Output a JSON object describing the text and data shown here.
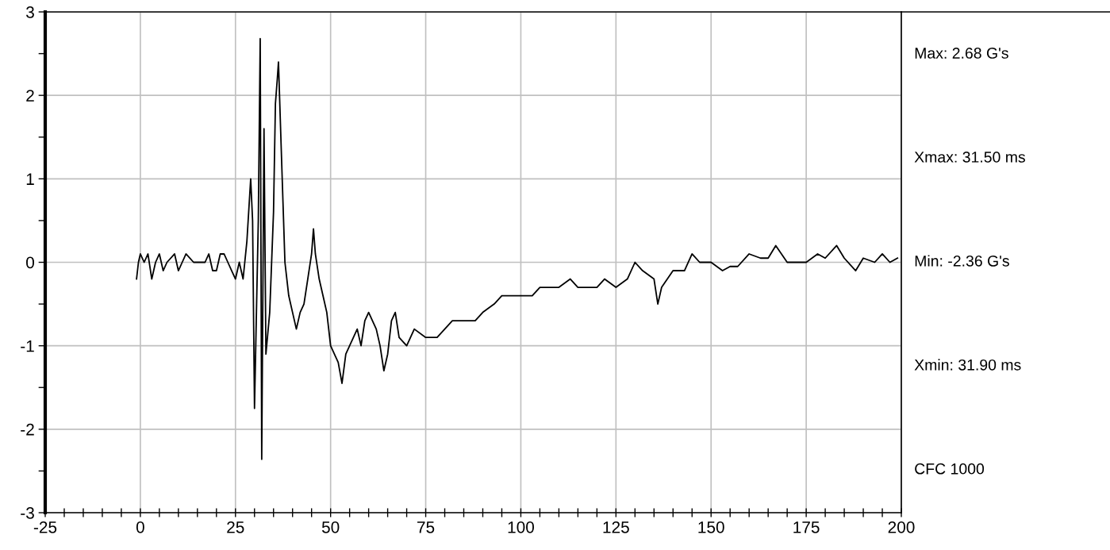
{
  "chart_data": {
    "type": "line",
    "x": [
      -1,
      -0.5,
      0,
      1,
      2,
      3,
      4,
      5,
      6,
      7,
      9,
      10,
      11,
      12,
      14,
      17,
      18,
      19,
      20,
      21,
      22,
      23,
      24,
      25,
      26,
      27,
      28,
      29,
      29.5,
      30,
      31,
      31.5,
      31.9,
      32.5,
      33,
      34,
      35,
      35.5,
      36,
      36.3,
      37,
      38,
      39,
      40,
      41,
      42,
      43,
      44,
      45,
      45.5,
      46,
      47,
      48,
      49,
      50,
      51,
      52,
      53,
      54,
      55,
      57,
      58,
      59,
      60,
      62,
      63,
      64,
      65,
      66,
      67,
      68,
      70,
      72,
      75,
      78,
      80,
      82,
      85,
      88,
      90,
      93,
      95,
      97,
      100,
      103,
      105,
      108,
      110,
      113,
      115,
      118,
      120,
      122,
      125,
      128,
      130,
      132,
      135,
      136,
      137,
      140,
      143,
      145,
      147,
      150,
      153,
      155,
      157,
      160,
      163,
      165,
      167,
      170,
      173,
      175,
      178,
      180,
      183,
      185,
      188,
      190,
      193,
      195,
      197,
      199
    ],
    "series": [
      {
        "color": "#000000",
        "values": [
          -0.2,
          0.0,
          0.1,
          0.0,
          0.1,
          -0.2,
          0.0,
          0.1,
          -0.1,
          0.0,
          0.1,
          -0.1,
          0.0,
          0.1,
          0.0,
          0.0,
          0.1,
          -0.1,
          -0.1,
          0.1,
          0.1,
          0.0,
          -0.1,
          -0.2,
          0.0,
          -0.2,
          0.25,
          1.0,
          0.5,
          -1.75,
          0.5,
          2.68,
          -2.36,
          1.6,
          -1.1,
          -0.6,
          0.6,
          1.9,
          2.2,
          2.4,
          1.4,
          0.0,
          -0.4,
          -0.6,
          -0.8,
          -0.6,
          -0.5,
          -0.2,
          0.1,
          0.4,
          0.1,
          -0.2,
          -0.4,
          -0.6,
          -1.0,
          -1.1,
          -1.2,
          -1.45,
          -1.1,
          -1.0,
          -0.8,
          -1.0,
          -0.7,
          -0.6,
          -0.8,
          -1.0,
          -1.3,
          -1.1,
          -0.7,
          -0.6,
          -0.9,
          -1.0,
          -0.8,
          -0.9,
          -0.9,
          -0.8,
          -0.7,
          -0.7,
          -0.7,
          -0.6,
          -0.5,
          -0.4,
          -0.4,
          -0.4,
          -0.4,
          -0.3,
          -0.3,
          -0.3,
          -0.2,
          -0.3,
          -0.3,
          -0.3,
          -0.2,
          -0.3,
          -0.2,
          0.0,
          -0.1,
          -0.2,
          -0.5,
          -0.3,
          -0.1,
          -0.1,
          0.1,
          0.0,
          0.0,
          -0.1,
          -0.05,
          -0.05,
          0.1,
          0.05,
          0.05,
          0.2,
          0.0,
          0.0,
          0.0,
          0.1,
          0.05,
          0.2,
          0.05,
          -0.1,
          0.05,
          0.0,
          0.1,
          0.0,
          0.05
        ]
      }
    ],
    "xlim": [
      -25,
      200
    ],
    "xticks": [
      -25,
      {
        "value": -20,
        "label": null
      },
      {
        "value": -15,
        "label": null
      },
      {
        "value": -10,
        "label": null
      },
      {
        "value": -5,
        "label": null
      },
      0,
      {
        "value": 5,
        "label": null
      },
      {
        "value": 10,
        "label": null
      },
      {
        "value": 15,
        "label": null
      },
      {
        "value": 20,
        "label": null
      },
      25,
      {
        "value": 30,
        "label": null
      },
      {
        "value": 35,
        "label": null
      },
      {
        "value": 40,
        "label": null
      },
      {
        "value": 45,
        "label": null
      },
      50,
      {
        "value": 55,
        "label": null
      },
      {
        "value": 60,
        "label": null
      },
      {
        "value": 65,
        "label": null
      },
      {
        "value": 70,
        "label": null
      },
      75,
      {
        "value": 80,
        "label": null
      },
      {
        "value": 85,
        "label": null
      },
      {
        "value": 90,
        "label": null
      },
      {
        "value": 95,
        "label": null
      },
      100,
      {
        "value": 105,
        "label": null
      },
      {
        "value": 110,
        "label": null
      },
      {
        "value": 115,
        "label": null
      },
      {
        "value": 120,
        "label": null
      },
      125,
      {
        "value": 130,
        "label": null
      },
      {
        "value": 135,
        "label": null
      },
      {
        "value": 140,
        "label": null
      },
      {
        "value": 145,
        "label": null
      },
      150,
      {
        "value": 155,
        "label": null
      },
      {
        "value": 160,
        "label": null
      },
      {
        "value": 165,
        "label": null
      },
      {
        "value": 170,
        "label": null
      },
      175,
      {
        "value": 180,
        "label": null
      },
      {
        "value": 185,
        "label": null
      },
      {
        "value": 190,
        "label": null
      },
      {
        "value": 195,
        "label": null
      },
      200
    ],
    "ylim": [
      -3,
      3
    ],
    "yticks": [
      -3,
      {
        "value": -2.5,
        "label": null
      },
      -2,
      {
        "value": -1.5,
        "label": null
      },
      -1,
      {
        "value": -0.5,
        "label": null
      },
      0,
      {
        "value": 0.5,
        "label": null
      },
      1,
      {
        "value": 1.5,
        "label": null
      },
      2,
      {
        "value": 2.5,
        "label": null
      },
      3
    ],
    "grid": true,
    "annotations": [
      "Max: 2.68 G's",
      "Xmax: 31.50 ms",
      "Min: -2.36 G's",
      "Xmin: 31.90 ms",
      "CFC 1000"
    ]
  }
}
